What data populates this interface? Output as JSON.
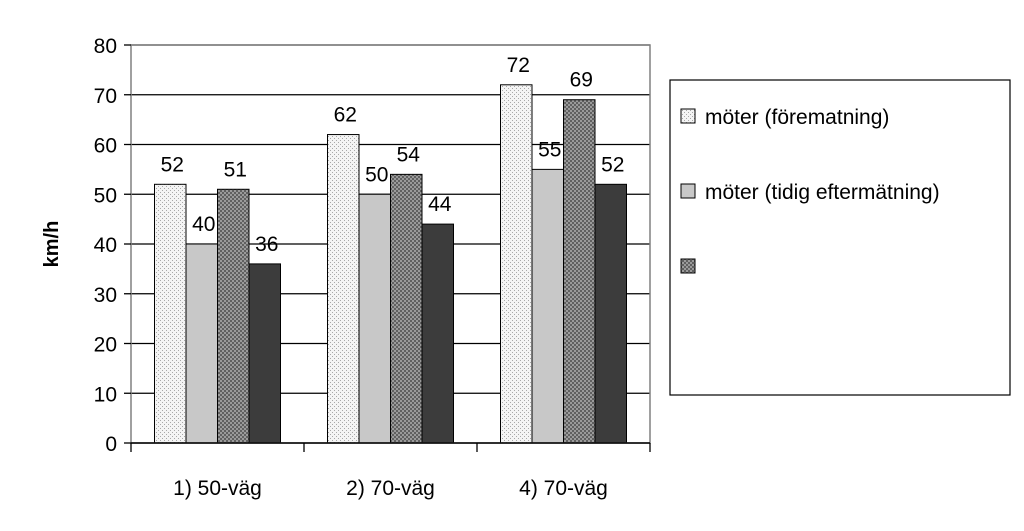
{
  "chart_data": {
    "type": "bar",
    "title": "",
    "xlabel": "",
    "ylabel": "km/h",
    "ylim": [
      0,
      80
    ],
    "yticks": [
      "0",
      "10",
      "20",
      "30",
      "40",
      "50",
      "60",
      "70",
      "80"
    ],
    "grid": true,
    "legend_position": "right",
    "categories": [
      "1) 50-väg",
      "2) 70-väg",
      "4) 70-väg"
    ],
    "series": [
      {
        "name": "möter (förematning)",
        "values": [
          52,
          62,
          72
        ],
        "pattern": "light-dotted"
      },
      {
        "name": "möter (tidig eftermätning)",
        "values": [
          40,
          50,
          55
        ],
        "pattern": "light-gray"
      },
      {
        "name": "",
        "values": [
          51,
          54,
          69
        ],
        "pattern": "dark-checked"
      },
      {
        "name": "",
        "values": [
          36,
          44,
          52
        ],
        "pattern": "dark-solid"
      }
    ],
    "data_labels": [
      [
        "52",
        "62",
        "72"
      ],
      [
        "40",
        "50",
        "55"
      ],
      [
        "51",
        "54",
        "69"
      ],
      [
        "36",
        "44",
        "52"
      ]
    ],
    "colors": {
      "series1": "#f0f0f0",
      "series2": "#c8c8c8",
      "series3": "#777777",
      "series4": "#3c3c3c"
    }
  }
}
